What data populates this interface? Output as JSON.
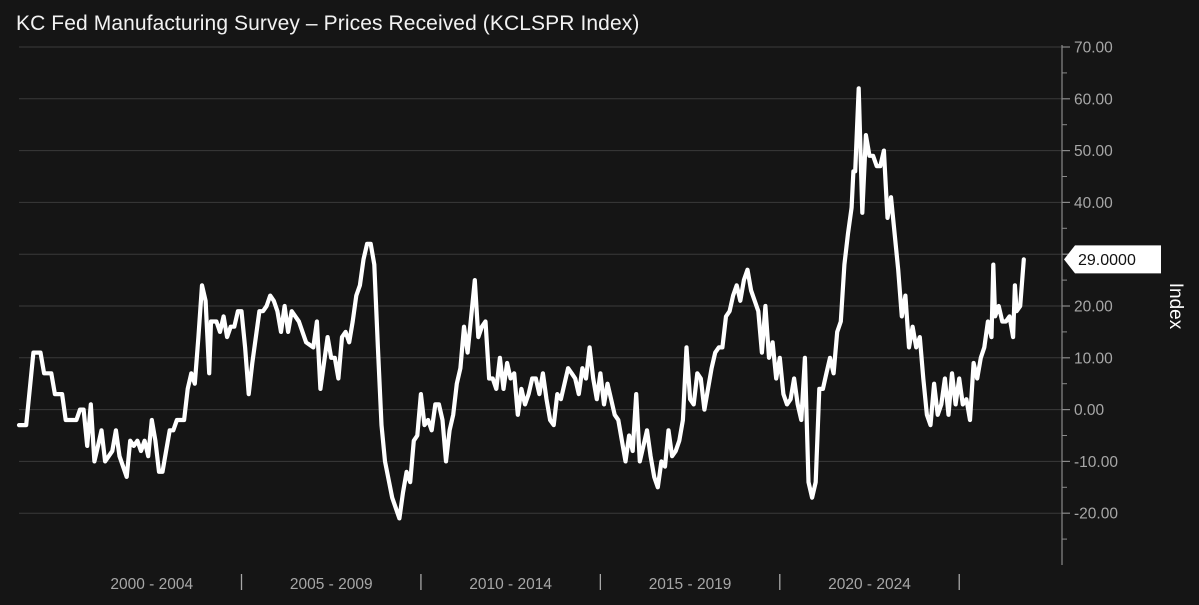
{
  "title": "KC Fed Manufacturing Survey – Prices Received (KCLSPR Index)",
  "chart_data": {
    "type": "line",
    "title": "KC Fed Manufacturing Survey – Prices Received (KCLSPR Index)",
    "xlabel": "",
    "ylabel": "Index",
    "ylim": [
      -30,
      70
    ],
    "xlim": [
      1998.8,
      2027.0
    ],
    "yticks": [
      -20,
      -10,
      0,
      10,
      20,
      30,
      40,
      50,
      60,
      70
    ],
    "ytick_labels": [
      "-20.00",
      "-10.00",
      "0.00",
      "10.00",
      "20.00",
      "30.00",
      "40.00",
      "50.00",
      "60.00",
      "70.00"
    ],
    "xtick_labels": [
      "2000 - 2004",
      "2005 - 2009",
      "2010 - 2014",
      "2015 - 2019",
      "2020 - 2024"
    ],
    "x_group_spans": [
      [
        2000.0,
        2005.0
      ],
      [
        2005.0,
        2010.0
      ],
      [
        2010.0,
        2015.0
      ],
      [
        2015.0,
        2020.0
      ],
      [
        2020.0,
        2025.0
      ]
    ],
    "grid": true,
    "line_color": "#ffffff",
    "background": "#151515",
    "last_value_label": "29.0000",
    "series": [
      {
        "values": [
          [
            1998.8,
            -3
          ],
          [
            1999.0,
            -3
          ],
          [
            1999.2,
            11
          ],
          [
            1999.4,
            11
          ],
          [
            1999.5,
            7
          ],
          [
            1999.7,
            7
          ],
          [
            1999.8,
            3
          ],
          [
            1999.9,
            3
          ],
          [
            2000.0,
            3
          ],
          [
            2000.1,
            -2
          ],
          [
            2000.3,
            -2
          ],
          [
            2000.4,
            -2
          ],
          [
            2000.5,
            0
          ],
          [
            2000.6,
            0
          ],
          [
            2000.7,
            -7
          ],
          [
            2000.8,
            1
          ],
          [
            2000.9,
            -10
          ],
          [
            2001.0,
            -7
          ],
          [
            2001.1,
            -4
          ],
          [
            2001.2,
            -10
          ],
          [
            2001.4,
            -8
          ],
          [
            2001.5,
            -4
          ],
          [
            2001.6,
            -9
          ],
          [
            2001.8,
            -13
          ],
          [
            2001.9,
            -6
          ],
          [
            2002.0,
            -7
          ],
          [
            2002.1,
            -6
          ],
          [
            2002.2,
            -8
          ],
          [
            2002.3,
            -6
          ],
          [
            2002.4,
            -9
          ],
          [
            2002.5,
            -2
          ],
          [
            2002.6,
            -6
          ],
          [
            2002.7,
            -12
          ],
          [
            2002.8,
            -12
          ],
          [
            2002.9,
            -8
          ],
          [
            2003.0,
            -4
          ],
          [
            2003.1,
            -4
          ],
          [
            2003.2,
            -2
          ],
          [
            2003.4,
            -2
          ],
          [
            2003.5,
            4
          ],
          [
            2003.6,
            7
          ],
          [
            2003.7,
            5
          ],
          [
            2003.8,
            14
          ],
          [
            2003.9,
            24
          ],
          [
            2004.0,
            21
          ],
          [
            2004.1,
            7
          ],
          [
            2004.15,
            17
          ],
          [
            2004.3,
            17
          ],
          [
            2004.4,
            15
          ],
          [
            2004.5,
            18
          ],
          [
            2004.6,
            14
          ],
          [
            2004.7,
            16
          ],
          [
            2004.8,
            16
          ],
          [
            2004.9,
            19
          ],
          [
            2005.0,
            19
          ],
          [
            2005.1,
            12
          ],
          [
            2005.2,
            3
          ],
          [
            2005.3,
            9
          ],
          [
            2005.5,
            19
          ],
          [
            2005.6,
            19
          ],
          [
            2005.7,
            20
          ],
          [
            2005.8,
            22
          ],
          [
            2005.9,
            21
          ],
          [
            2006.0,
            19
          ],
          [
            2006.1,
            15
          ],
          [
            2006.2,
            20
          ],
          [
            2006.3,
            15
          ],
          [
            2006.4,
            19
          ],
          [
            2006.6,
            17
          ],
          [
            2006.7,
            15
          ],
          [
            2006.8,
            13
          ],
          [
            2007.0,
            12
          ],
          [
            2007.1,
            17
          ],
          [
            2007.2,
            4
          ],
          [
            2007.3,
            9
          ],
          [
            2007.4,
            14
          ],
          [
            2007.5,
            10
          ],
          [
            2007.6,
            10
          ],
          [
            2007.7,
            6
          ],
          [
            2007.8,
            14
          ],
          [
            2007.9,
            15
          ],
          [
            2008.0,
            13
          ],
          [
            2008.1,
            17
          ],
          [
            2008.2,
            22
          ],
          [
            2008.3,
            24
          ],
          [
            2008.4,
            29
          ],
          [
            2008.5,
            32
          ],
          [
            2008.6,
            32
          ],
          [
            2008.7,
            28
          ],
          [
            2008.8,
            12
          ],
          [
            2008.9,
            -3
          ],
          [
            2009.0,
            -10
          ],
          [
            2009.2,
            -17
          ],
          [
            2009.3,
            -19
          ],
          [
            2009.4,
            -21
          ],
          [
            2009.5,
            -16
          ],
          [
            2009.6,
            -12
          ],
          [
            2009.7,
            -14
          ],
          [
            2009.8,
            -6
          ],
          [
            2009.9,
            -5
          ],
          [
            2010.0,
            3
          ],
          [
            2010.1,
            -3
          ],
          [
            2010.2,
            -2
          ],
          [
            2010.3,
            -4
          ],
          [
            2010.4,
            1
          ],
          [
            2010.5,
            1
          ],
          [
            2010.6,
            -2
          ],
          [
            2010.7,
            -10
          ],
          [
            2010.8,
            -4
          ],
          [
            2010.9,
            -1
          ],
          [
            2011.0,
            5
          ],
          [
            2011.1,
            8
          ],
          [
            2011.2,
            16
          ],
          [
            2011.3,
            11
          ],
          [
            2011.4,
            18
          ],
          [
            2011.5,
            25
          ],
          [
            2011.6,
            14
          ],
          [
            2011.7,
            16
          ],
          [
            2011.8,
            17
          ],
          [
            2011.9,
            6
          ],
          [
            2012.0,
            6
          ],
          [
            2012.1,
            4
          ],
          [
            2012.2,
            10
          ],
          [
            2012.3,
            4
          ],
          [
            2012.4,
            9
          ],
          [
            2012.5,
            6
          ],
          [
            2012.6,
            7
          ],
          [
            2012.7,
            -1
          ],
          [
            2012.8,
            4
          ],
          [
            2012.9,
            1
          ],
          [
            2013.0,
            3
          ],
          [
            2013.1,
            6
          ],
          [
            2013.2,
            6
          ],
          [
            2013.3,
            3
          ],
          [
            2013.4,
            7
          ],
          [
            2013.5,
            2
          ],
          [
            2013.6,
            -2
          ],
          [
            2013.7,
            -3
          ],
          [
            2013.8,
            3
          ],
          [
            2013.9,
            2
          ],
          [
            2014.0,
            5
          ],
          [
            2014.1,
            8
          ],
          [
            2014.2,
            7
          ],
          [
            2014.3,
            6
          ],
          [
            2014.4,
            3
          ],
          [
            2014.5,
            8
          ],
          [
            2014.6,
            6
          ],
          [
            2014.7,
            12
          ],
          [
            2014.8,
            6
          ],
          [
            2014.9,
            2
          ],
          [
            2015.0,
            7
          ],
          [
            2015.1,
            1
          ],
          [
            2015.2,
            5
          ],
          [
            2015.3,
            2
          ],
          [
            2015.4,
            -1
          ],
          [
            2015.5,
            -2
          ],
          [
            2015.6,
            -6
          ],
          [
            2015.7,
            -10
          ],
          [
            2015.8,
            -5
          ],
          [
            2015.9,
            -8
          ],
          [
            2016.0,
            3
          ],
          [
            2016.1,
            -10
          ],
          [
            2016.2,
            -7
          ],
          [
            2016.3,
            -4
          ],
          [
            2016.4,
            -9
          ],
          [
            2016.5,
            -13
          ],
          [
            2016.6,
            -15
          ],
          [
            2016.7,
            -10
          ],
          [
            2016.8,
            -11
          ],
          [
            2016.9,
            -4
          ],
          [
            2017.0,
            -9
          ],
          [
            2017.1,
            -8
          ],
          [
            2017.2,
            -6
          ],
          [
            2017.3,
            -2
          ],
          [
            2017.4,
            12
          ],
          [
            2017.5,
            2
          ],
          [
            2017.6,
            1
          ],
          [
            2017.7,
            7
          ],
          [
            2017.8,
            6
          ],
          [
            2017.9,
            0
          ],
          [
            2018.0,
            4
          ],
          [
            2018.1,
            8
          ],
          [
            2018.2,
            11
          ],
          [
            2018.3,
            12
          ],
          [
            2018.4,
            12
          ],
          [
            2018.5,
            18
          ],
          [
            2018.6,
            19
          ],
          [
            2018.7,
            22
          ],
          [
            2018.8,
            24
          ],
          [
            2018.9,
            21
          ],
          [
            2019.0,
            25
          ],
          [
            2019.1,
            27
          ],
          [
            2019.2,
            23
          ],
          [
            2019.3,
            21
          ],
          [
            2019.4,
            19
          ],
          [
            2019.5,
            11
          ],
          [
            2019.6,
            20
          ],
          [
            2019.7,
            10
          ],
          [
            2019.8,
            13
          ],
          [
            2019.9,
            6
          ],
          [
            2020.0,
            10
          ],
          [
            2020.1,
            3
          ],
          [
            2020.2,
            1
          ],
          [
            2020.3,
            2
          ],
          [
            2020.4,
            6
          ],
          [
            2020.5,
            1
          ],
          [
            2020.6,
            -2
          ],
          [
            2020.7,
            10
          ],
          [
            2020.8,
            -14
          ],
          [
            2020.9,
            -17
          ],
          [
            2021.0,
            -14
          ],
          [
            2021.1,
            4
          ],
          [
            2021.2,
            4
          ],
          [
            2021.3,
            7
          ],
          [
            2021.4,
            10
          ],
          [
            2021.5,
            7
          ],
          [
            2021.6,
            15
          ],
          [
            2021.7,
            17
          ],
          [
            2021.8,
            28
          ],
          [
            2021.9,
            34
          ],
          [
            2022.0,
            39
          ],
          [
            2022.05,
            46
          ],
          [
            2022.1,
            46
          ],
          [
            2022.2,
            62
          ],
          [
            2022.3,
            38
          ],
          [
            2022.4,
            53
          ],
          [
            2022.5,
            49
          ],
          [
            2022.6,
            49
          ],
          [
            2022.7,
            47
          ],
          [
            2022.8,
            47
          ],
          [
            2022.9,
            50
          ],
          [
            2023.0,
            37
          ],
          [
            2023.1,
            41
          ],
          [
            2023.2,
            34
          ],
          [
            2023.3,
            27
          ],
          [
            2023.4,
            18
          ],
          [
            2023.5,
            22
          ],
          [
            2023.6,
            12
          ],
          [
            2023.7,
            16
          ],
          [
            2023.8,
            12
          ],
          [
            2023.9,
            14
          ],
          [
            2024.0,
            6
          ],
          [
            2024.1,
            -1
          ],
          [
            2024.2,
            -3
          ],
          [
            2024.3,
            5
          ],
          [
            2024.4,
            -1
          ],
          [
            2024.5,
            1
          ],
          [
            2024.6,
            6
          ],
          [
            2024.7,
            -1
          ],
          [
            2024.8,
            7
          ],
          [
            2024.9,
            1
          ],
          [
            2025.0,
            6
          ],
          [
            2025.1,
            1
          ],
          [
            2025.2,
            2
          ],
          [
            2025.3,
            -2
          ],
          [
            2025.4,
            9
          ],
          [
            2025.5,
            6
          ],
          [
            2025.6,
            10
          ],
          [
            2025.7,
            12
          ],
          [
            2025.8,
            17
          ],
          [
            2025.9,
            14
          ],
          [
            2025.95,
            28
          ],
          [
            2026.0,
            18
          ],
          [
            2026.1,
            20
          ],
          [
            2026.2,
            17
          ],
          [
            2026.3,
            17
          ],
          [
            2026.4,
            18
          ],
          [
            2026.5,
            14
          ],
          [
            2026.55,
            24
          ],
          [
            2026.6,
            19
          ],
          [
            2026.7,
            20
          ],
          [
            2026.8,
            29
          ]
        ]
      }
    ]
  }
}
